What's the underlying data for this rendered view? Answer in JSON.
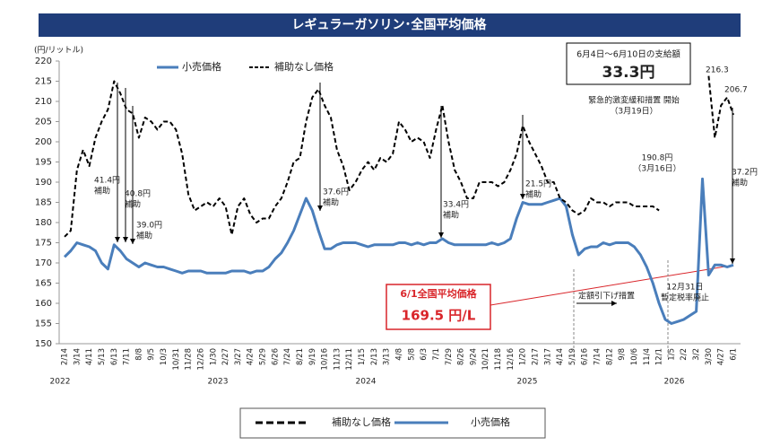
{
  "chart_data": {
    "type": "line",
    "title": "レギュラーガソリン･全国平均価格",
    "y_unit": "(円/リットル)",
    "ylim": [
      150,
      220
    ],
    "yticks": [
      150,
      155,
      160,
      165,
      170,
      175,
      180,
      185,
      190,
      195,
      200,
      205,
      210,
      215,
      220
    ],
    "categories": [
      "2/14",
      null,
      "3/14",
      null,
      "4/11",
      null,
      "5/13",
      null,
      "6/13",
      null,
      "7/11",
      null,
      "8/8",
      null,
      "9/5",
      null,
      "10/3",
      null,
      "10/31",
      null,
      "11/28",
      null,
      "12/26",
      null,
      "1/30",
      null,
      "2/27",
      null,
      "3/27",
      null,
      "4/24",
      null,
      "5/29",
      null,
      "6/26",
      null,
      "7/24",
      null,
      "8/21",
      null,
      "9/19",
      null,
      "10/16",
      null,
      "11/13",
      null,
      "12/11",
      null,
      "1/15",
      null,
      "2/13",
      null,
      "3/13",
      null,
      "4/8",
      null,
      "5/8",
      null,
      "6/3",
      null,
      "7/1",
      null,
      "7/29",
      null,
      "8/26",
      null,
      "9/24",
      null,
      "10/21",
      null,
      "11/18",
      null,
      "12/16",
      null,
      "1/20",
      null,
      "2/17",
      null,
      "3/17",
      null,
      "4/14",
      null,
      "5/19",
      null,
      "6/16",
      null,
      "7/14",
      null,
      "8/12",
      null,
      "9/8",
      null,
      "10/6",
      null,
      "11/4",
      null,
      "12/1",
      null,
      "1/5",
      null,
      "2/2",
      null,
      "3/2",
      null,
      "3/30",
      null,
      "4/27",
      null,
      "6/1"
    ],
    "year_labels": [
      "2022",
      "2023",
      "2024",
      "2025",
      "2026"
    ],
    "series": [
      {
        "name": "小売価格",
        "color": "#4a7ebb",
        "dash": false,
        "values": [
          171.5,
          173,
          175,
          174.5,
          174,
          173,
          170,
          168.5,
          174.5,
          173,
          171,
          170,
          169,
          170,
          169.5,
          169,
          169,
          168.5,
          168,
          167.5,
          168,
          168,
          168,
          167.5,
          167.5,
          167.5,
          167.5,
          168,
          168,
          168,
          167.5,
          168,
          168,
          169,
          171,
          172.5,
          175,
          178,
          182,
          186,
          183,
          178,
          173.5,
          173.5,
          174.5,
          175,
          175,
          175,
          174.5,
          174,
          174.5,
          174.5,
          174.5,
          174.5,
          175,
          175,
          174.5,
          175,
          174.5,
          175,
          175,
          176,
          175,
          174.5,
          174.5,
          174.5,
          174.5,
          174.5,
          174.5,
          175,
          174.5,
          175,
          176,
          181,
          185,
          184.5,
          184.5,
          184.5,
          185,
          185.5,
          186,
          184,
          177,
          172,
          173.5,
          174,
          174,
          175,
          174.5,
          175,
          175,
          175,
          174,
          172,
          169,
          165,
          160,
          156,
          155,
          155.5,
          156,
          157,
          158,
          190.8,
          167,
          169.5,
          169.5,
          169,
          169.5
        ]
      },
      {
        "name": "補助なし価格",
        "color": "#000000",
        "dash": true,
        "values": [
          176.5,
          178,
          193,
          198,
          194,
          201,
          205,
          208,
          215,
          212,
          208,
          207,
          201,
          206,
          205,
          203,
          205,
          205,
          203,
          197,
          187,
          183,
          184,
          185,
          184,
          186,
          184,
          177,
          184,
          186,
          182,
          180,
          181,
          181,
          184,
          186,
          190,
          195,
          196,
          205,
          211,
          213,
          209,
          206,
          198,
          194,
          188,
          190,
          193,
          195,
          193,
          196,
          195,
          197,
          205,
          203,
          200,
          201,
          200,
          196,
          203,
          209,
          200,
          193,
          190,
          186,
          186,
          190,
          190,
          190,
          189,
          190,
          193,
          197,
          204,
          200,
          197,
          194,
          190,
          190,
          186,
          185,
          183,
          182,
          183,
          186,
          185,
          185,
          184,
          185,
          185,
          185,
          184,
          184,
          184,
          184,
          183,
          null,
          null,
          null,
          null,
          null,
          null,
          null,
          216.3,
          201,
          209,
          211,
          206.7
        ]
      }
    ],
    "annotations": [
      {
        "lines": [
          "41.4円",
          "補助"
        ]
      },
      {
        "lines": [
          "40.8円",
          "補助"
        ]
      },
      {
        "lines": [
          "39.0円",
          "補助"
        ]
      },
      {
        "lines": [
          "37.6円",
          "補助"
        ]
      },
      {
        "lines": [
          "33.4円",
          "補助"
        ]
      },
      {
        "lines": [
          "21.5円",
          "補助"
        ]
      },
      {
        "lines": [
          "190.8円",
          "（3月16日）"
        ]
      },
      {
        "lines": [
          "216.3"
        ]
      },
      {
        "lines": [
          "206.7"
        ]
      },
      {
        "lines": [
          "37.2円",
          "補助"
        ]
      },
      {
        "lines": [
          "12月31日",
          "暫定税率廃止"
        ]
      },
      {
        "lines": [
          "定額引下げ措置"
        ]
      },
      {
        "lines": [
          "緊急的激変緩和措置 開始",
          "（3月19日）"
        ]
      }
    ],
    "payment_box": {
      "caption": "6月4日～6月10日の支給額",
      "amount": "33.3円"
    },
    "price_box": {
      "caption": "6/1全国平均価格",
      "price": "169.5 円/L"
    }
  }
}
